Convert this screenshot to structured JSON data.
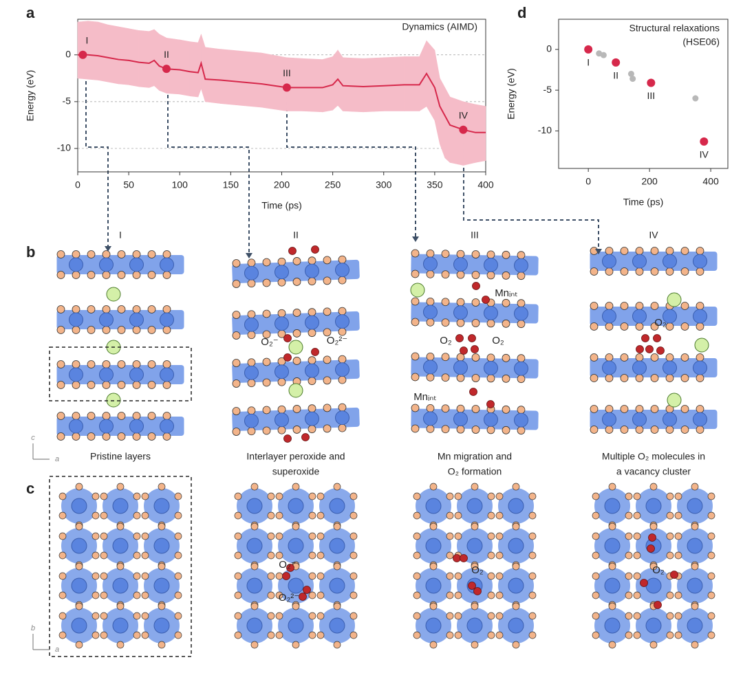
{
  "labels": {
    "a": "a",
    "b": "b",
    "c": "c",
    "d": "d"
  },
  "chart_data": [
    {
      "type": "line",
      "annotation": "Dynamics (AIMD)",
      "xlabel": "Time (ps)",
      "ylabel": "Energy (eV)",
      "color": "#d6284b",
      "band_color": "#f5bcc8",
      "x": [
        0,
        10,
        20,
        30,
        40,
        50,
        60,
        70,
        75,
        80,
        87,
        100,
        110,
        118,
        121,
        125,
        140,
        160,
        180,
        205,
        220,
        240,
        250,
        255,
        260,
        280,
        300,
        320,
        335,
        342,
        350,
        355,
        360,
        365,
        378,
        390,
        400
      ],
      "values": [
        0,
        0,
        -0.1,
        -0.3,
        -0.5,
        -0.6,
        -0.8,
        -0.9,
        -0.6,
        -1.2,
        -1.5,
        -1.6,
        -1.8,
        -1.9,
        -0.9,
        -2.6,
        -2.7,
        -2.9,
        -3.1,
        -3.5,
        -3.5,
        -3.5,
        -3.2,
        -2.6,
        -3.3,
        -3.4,
        -3.3,
        -3.2,
        -3.2,
        -2.0,
        -3.5,
        -5.5,
        -6.5,
        -7.5,
        -8.0,
        -8.3,
        -8.3
      ],
      "band_upper": [
        3.5,
        3.6,
        3.5,
        3.2,
        3,
        2.8,
        2.6,
        2.5,
        2.7,
        2.2,
        1.8,
        1.6,
        1.4,
        1.3,
        2.2,
        0.8,
        0.6,
        0.4,
        0.2,
        -0.3,
        -0.4,
        -0.5,
        -0.2,
        0.5,
        -0.3,
        -0.4,
        -0.3,
        -0.2,
        -0.2,
        1.5,
        0.5,
        -2.5,
        -3.5,
        -4.5,
        -5.0,
        -5.3,
        -5.5
      ],
      "band_lower": [
        -2.5,
        -2.6,
        -2.7,
        -2.9,
        -3.1,
        -3.2,
        -3.4,
        -3.5,
        -3.3,
        -3.8,
        -4.1,
        -4.2,
        -4.4,
        -4.5,
        -3.6,
        -5.0,
        -5.2,
        -5.4,
        -5.6,
        -6.0,
        -6.0,
        -6.1,
        -5.9,
        -5.4,
        -6.0,
        -6.1,
        -6.0,
        -6.0,
        -6.0,
        -5.5,
        -7.0,
        -9.5,
        -11.0,
        -11.5,
        -11.8,
        -11.5,
        -11.3
      ],
      "points": {
        "x": [
          5,
          87,
          205,
          378
        ],
        "values": [
          0,
          -1.5,
          -3.5,
          -8.0
        ],
        "labels": [
          "I",
          "II",
          "III",
          "IV"
        ],
        "color": "#d6284b"
      },
      "xlim": [
        0,
        400
      ],
      "ylim": [
        -12.5,
        3.8
      ],
      "xticks": [
        0,
        50,
        100,
        150,
        200,
        250,
        300,
        350,
        400
      ],
      "yticks": [
        -10,
        -5,
        0
      ]
    },
    {
      "type": "scatter",
      "annotation": [
        "Structural relaxations",
        "(HSE06)"
      ],
      "xlabel": "Time (ps)",
      "ylabel": "Energy (eV)",
      "points": {
        "x": [
          0,
          90,
          205,
          378
        ],
        "values": [
          0,
          -1.6,
          -4.1,
          -11.3
        ],
        "labels": [
          "I",
          "II",
          "III",
          "IV"
        ],
        "color": "#d6284b"
      },
      "other_points": {
        "x": [
          35,
          50,
          140,
          145,
          350
        ],
        "values": [
          -0.5,
          -0.7,
          -3.0,
          -3.6,
          -6.0
        ],
        "color": "#b8b8b8"
      },
      "xlim": [
        -97,
        456
      ],
      "ylim": [
        -14.6,
        3.7
      ],
      "xticks": [
        0,
        200,
        400
      ],
      "yticks": [
        -10,
        -5,
        0
      ]
    }
  ],
  "panel_b": {
    "headers": [
      "I",
      "II",
      "III",
      "IV"
    ],
    "captions": [
      [
        "Pristine layers"
      ],
      [
        "Interlayer peroxide and",
        "superoxide"
      ],
      [
        "Mn migration and",
        "O₂ formation"
      ],
      [
        "Multiple O₂ molecules in",
        "a vacancy cluster"
      ]
    ],
    "annotations": [
      "O₂⁻",
      "O₂²⁻",
      "Mnᵢₙₜ",
      "O₂",
      "O₂",
      "Mnᵢₙₜ",
      "O₂"
    ],
    "axes": [
      "c",
      "a"
    ]
  },
  "panel_c": {
    "annotations": [
      "O₂⁻",
      "O₂²⁻",
      "O₂",
      "O₂"
    ],
    "axes": [
      "b",
      "a"
    ]
  }
}
